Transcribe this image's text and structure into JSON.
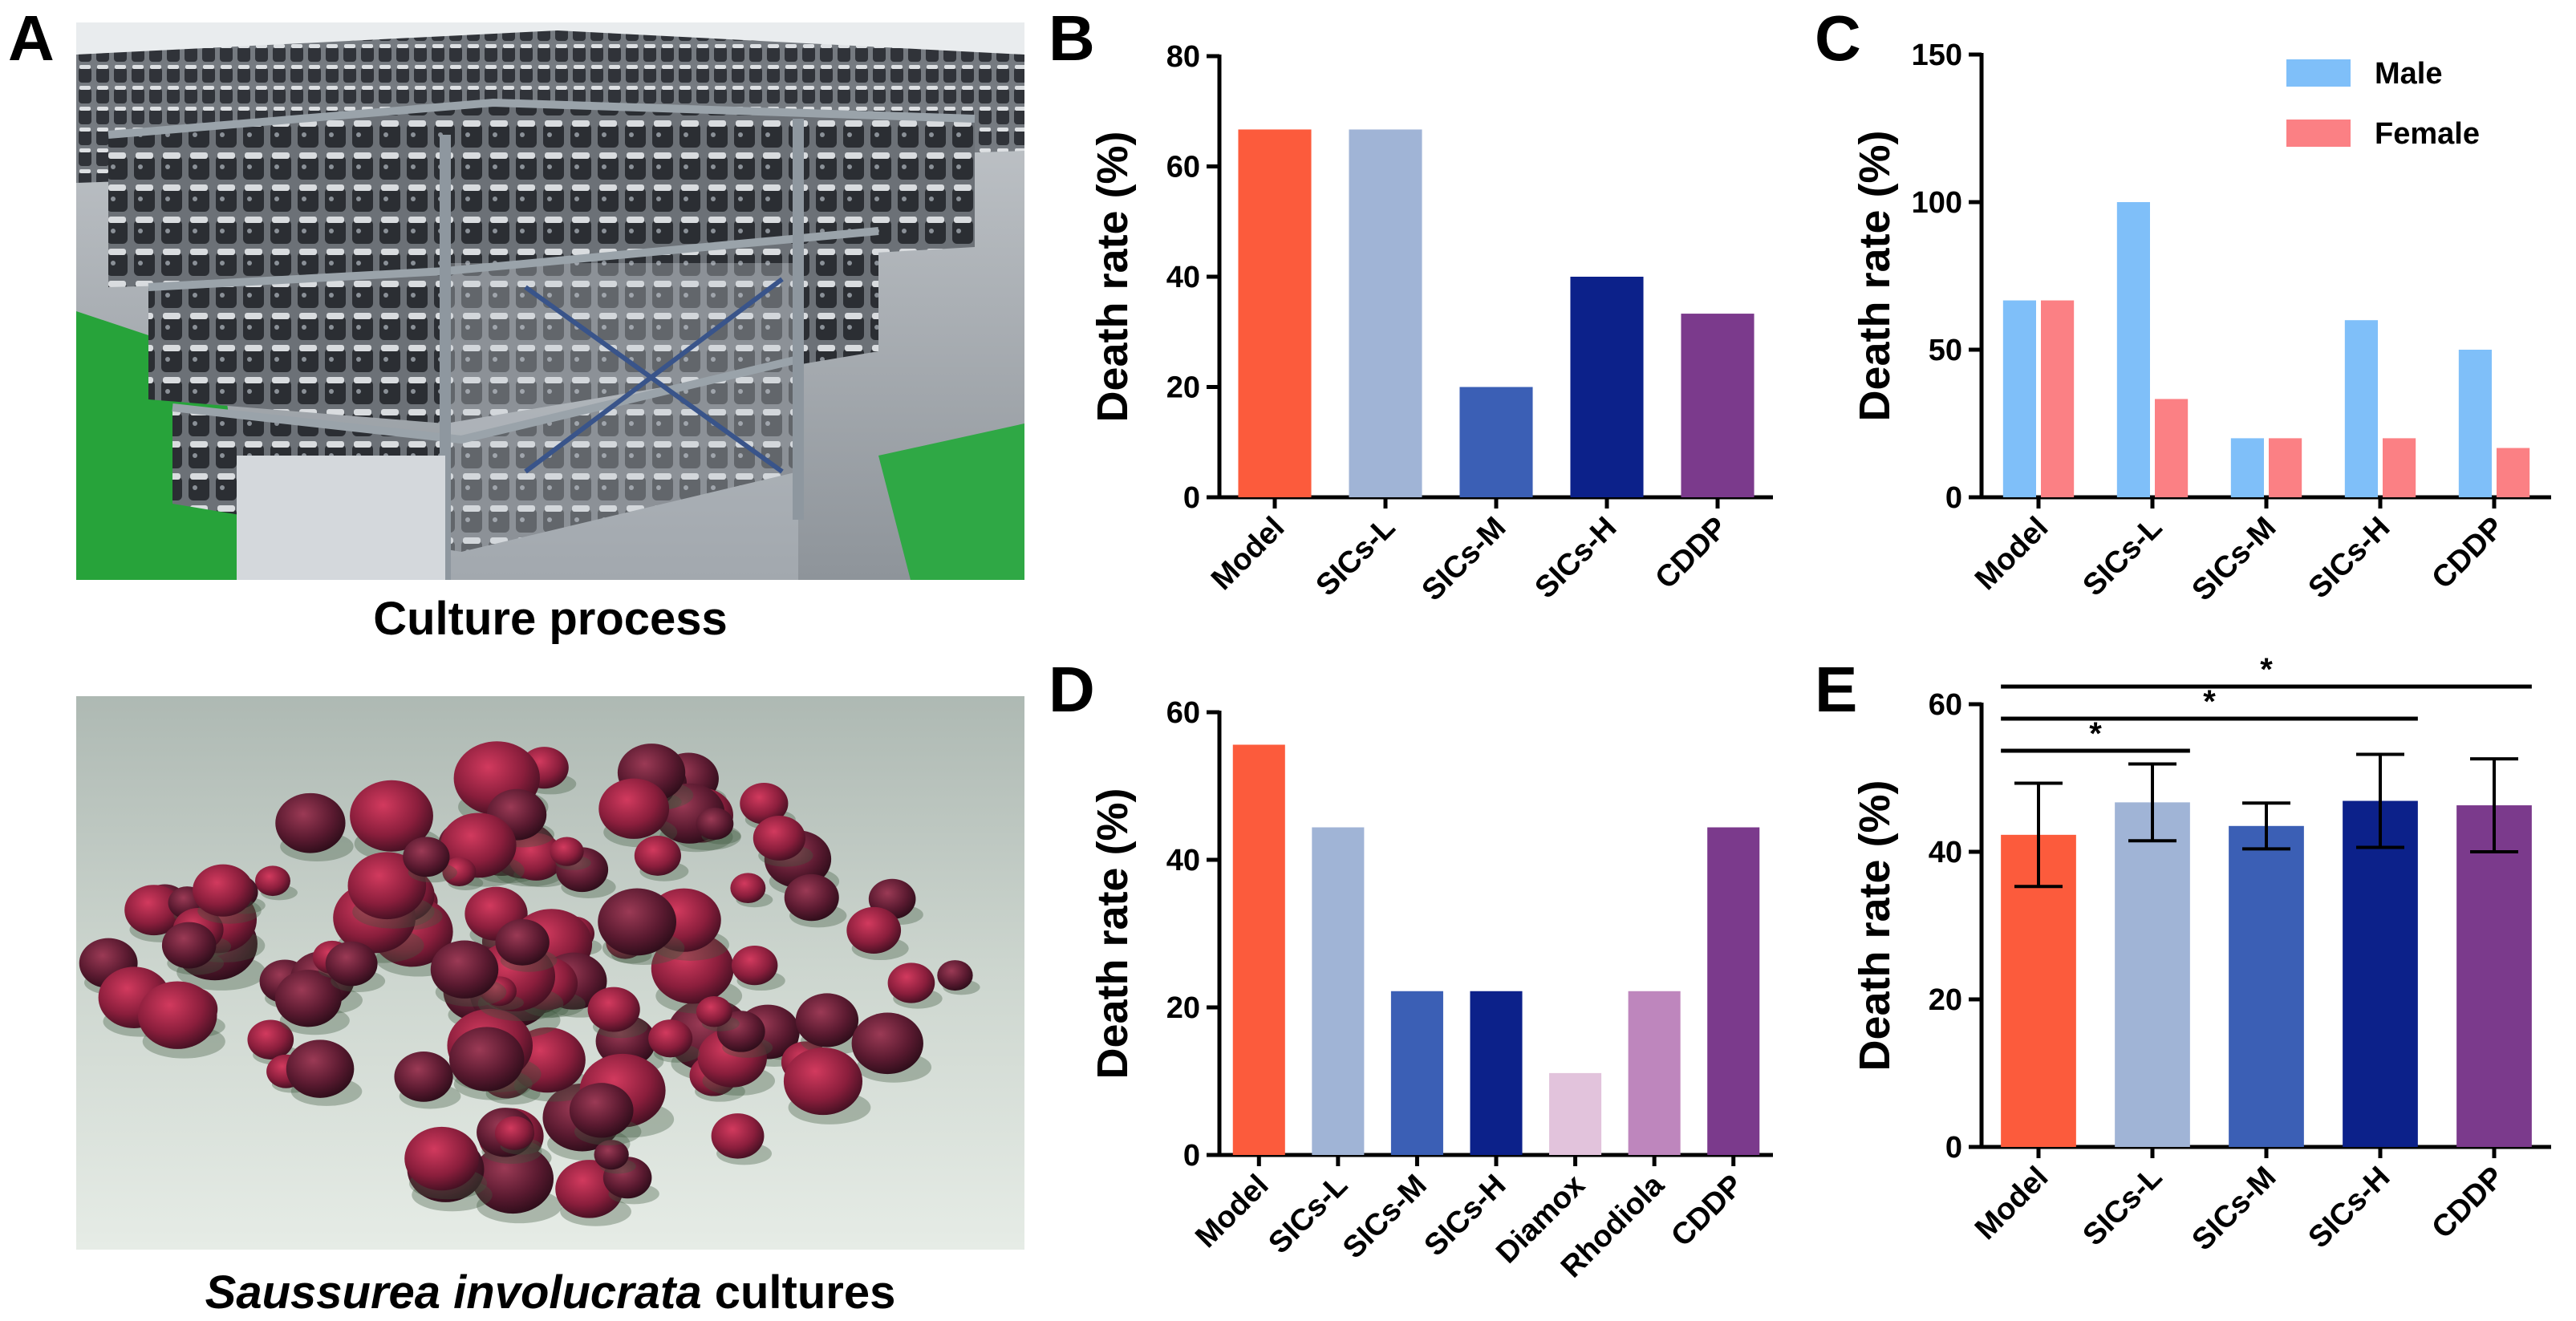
{
  "panels": {
    "a_letter": "A",
    "b_letter": "B",
    "c_letter": "C",
    "d_letter": "D",
    "e_letter": "E"
  },
  "photos": {
    "top_caption": "Culture process",
    "bottom_caption_italic": "Saussurea involucrata",
    "bottom_caption_rest": " cultures"
  },
  "chart_data": [
    {
      "id": "B",
      "type": "bar",
      "ylabel": "Death rate (%)",
      "ylim": [
        0,
        80
      ],
      "yticks": [
        0,
        20,
        40,
        60,
        80
      ],
      "categories": [
        "Model",
        "SICs-L",
        "SICs-M",
        "SICs-H",
        "CDDP"
      ],
      "values": [
        66.7,
        66.7,
        20,
        40,
        33.3
      ],
      "colors": [
        "#fc5b3c",
        "#a0b4d6",
        "#3b5fb5",
        "#0c218a",
        "#7b3a8c"
      ]
    },
    {
      "id": "C",
      "type": "bar",
      "ylabel": "Death rate (%)",
      "ylim": [
        0,
        150
      ],
      "yticks": [
        0,
        50,
        100,
        150
      ],
      "categories": [
        "Model",
        "SICs-L",
        "SICs-M",
        "SICs-H",
        "CDDP"
      ],
      "legend_position": "top-right",
      "series": [
        {
          "name": "Male",
          "color": "#7fbff9",
          "values": [
            66.7,
            100,
            20,
            60,
            50
          ]
        },
        {
          "name": "Female",
          "color": "#fb8084",
          "values": [
            66.7,
            33.3,
            20,
            20,
            16.7
          ]
        }
      ]
    },
    {
      "id": "D",
      "type": "bar",
      "ylabel": "Death rate (%)",
      "ylim": [
        0,
        60
      ],
      "yticks": [
        0,
        20,
        40,
        60
      ],
      "categories": [
        "Model",
        "SICs-L",
        "SICs-M",
        "SICs-H",
        "Diamox",
        "Rhodiola",
        "CDDP"
      ],
      "values": [
        55.6,
        44.4,
        22.2,
        22.2,
        11.1,
        22.2,
        44.4
      ],
      "colors": [
        "#fc5b3c",
        "#a0b4d6",
        "#3b5fb5",
        "#0c218a",
        "#e2c3dc",
        "#be86bd",
        "#7b3a8c"
      ]
    },
    {
      "id": "E",
      "type": "bar",
      "ylabel": "Death rate (%)",
      "ylim": [
        0,
        60
      ],
      "yticks": [
        0,
        20,
        40,
        60
      ],
      "categories": [
        "Model",
        "SICs-L",
        "SICs-M",
        "SICs-H",
        "CDDP"
      ],
      "values": [
        42.3,
        46.7,
        43.5,
        46.9,
        46.3
      ],
      "errors": [
        7.0,
        5.2,
        3.1,
        6.3,
        6.3
      ],
      "colors": [
        "#fc5b3c",
        "#a0b4d6",
        "#3b5fb5",
        "#0c218a",
        "#7b3a8c"
      ],
      "significance": [
        {
          "from": 0,
          "to": 1,
          "label": "*"
        },
        {
          "from": 0,
          "to": 3,
          "label": "*"
        },
        {
          "from": 0,
          "to": 4,
          "label": "*"
        }
      ]
    }
  ]
}
